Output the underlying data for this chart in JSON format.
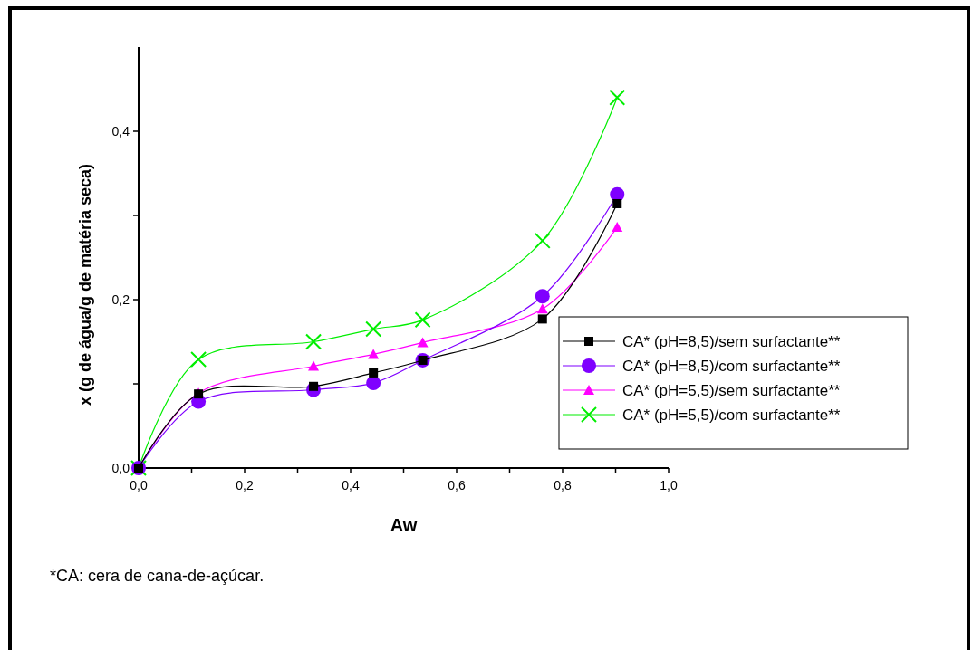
{
  "chart_data": {
    "type": "line",
    "xlabel": "Aw",
    "ylabel": "x (g de água/g de matéria seca)",
    "annotations": [
      "*CA: cera de cana-de-açúcar."
    ],
    "x": [
      0,
      0.113,
      0.33,
      0.443,
      0.536,
      0.762,
      0.903
    ],
    "xlim": [
      0,
      1.0
    ],
    "xticks": [
      {
        "value": 0,
        "label": "0,0"
      },
      {
        "value": 0.1,
        "label": null
      },
      {
        "value": 0.2,
        "label": "0,2"
      },
      {
        "value": 0.3,
        "label": null
      },
      {
        "value": 0.4,
        "label": "0,4"
      },
      {
        "value": 0.5,
        "label": null
      },
      {
        "value": 0.6,
        "label": "0,6"
      },
      {
        "value": 0.7,
        "label": null
      },
      {
        "value": 0.8,
        "label": "0,8"
      },
      {
        "value": 0.9,
        "label": null
      },
      {
        "value": 1.0,
        "label": "1,0"
      }
    ],
    "ylim": [
      0,
      0.5
    ],
    "yticks": [
      {
        "value": 0,
        "label": "0,0"
      },
      {
        "value": 0.1,
        "label": null
      },
      {
        "value": 0.2,
        "label": "0,2"
      },
      {
        "value": 0.3,
        "label": null
      },
      {
        "value": 0.4,
        "label": "0,4"
      }
    ],
    "legend": "right",
    "grid": false,
    "series": [
      {
        "name": "CA* (pH=8,5)/sem surfactante**",
        "color": "#000000",
        "marker": "square",
        "values": [
          0,
          0.088,
          0.097,
          0.113,
          0.128,
          0.177,
          0.314
        ]
      },
      {
        "name": "CA* (pH=8,5)/com surfactante**",
        "color": "#7f00ff",
        "marker": "circle",
        "values": [
          0,
          0.079,
          0.093,
          0.101,
          0.128,
          0.204,
          0.325
        ]
      },
      {
        "name": "CA* (pH=5,5)/sem surfactante**",
        "color": "#ff00ff",
        "marker": "triangle",
        "values": [
          0,
          0.089,
          0.121,
          0.135,
          0.149,
          0.189,
          0.286
        ]
      },
      {
        "name": "CA* (pH=5,5)/com surfactante**",
        "color": "#00ee00",
        "marker": "cross",
        "values": [
          0,
          0.129,
          0.15,
          0.165,
          0.176,
          0.27,
          0.44
        ]
      }
    ]
  }
}
